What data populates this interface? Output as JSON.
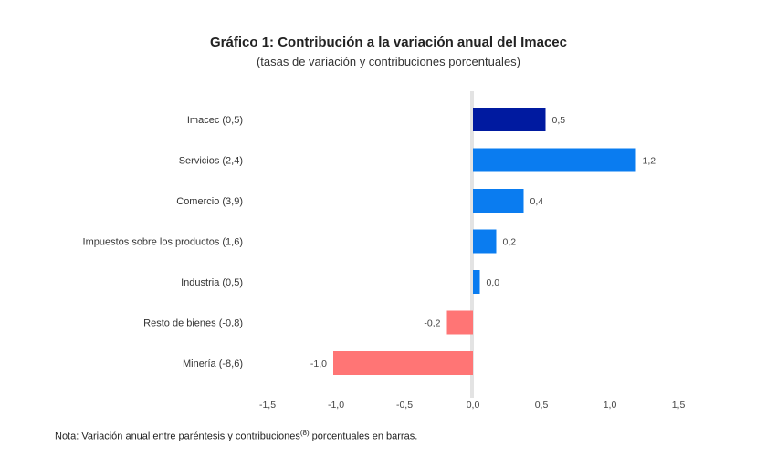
{
  "chart_data": {
    "type": "bar",
    "orientation": "horizontal",
    "title": "Gráfico 1: Contribución a la variación anual del Imacec",
    "subtitle": "(tasas de variación y contribuciones porcentuales)",
    "categories": [
      "Imacec (0,5)",
      "Servicios (2,4)",
      "Comercio (3,9)",
      "Impuestos sobre los productos (1,6)",
      "Industria (0,5)",
      "Resto de bienes (-0,8)",
      "Minería (-8,6)"
    ],
    "values": [
      0.5,
      1.2,
      0.4,
      0.2,
      0.0,
      -0.2,
      -1.0
    ],
    "bar_extent_estimates": [
      0.53,
      1.19,
      0.37,
      0.17,
      0.05,
      -0.19,
      -1.02
    ],
    "value_labels": [
      "0,5",
      "1,2",
      "0,4",
      "0,2",
      "0,0",
      "-0,2",
      "-1,0"
    ],
    "bar_colors": [
      "#001aa0",
      "#0a7cf0",
      "#0a7cf0",
      "#0a7cf0",
      "#0a7cf0",
      "#ff7575",
      "#ff7575"
    ],
    "xlim": [
      -1.5,
      1.5
    ],
    "xticks": [
      -1.5,
      -1.0,
      -0.5,
      0.0,
      0.5,
      1.0,
      1.5
    ],
    "xtick_labels": [
      "-1,5",
      "-1,0",
      "-0,5",
      "0,0",
      "0,5",
      "1,0",
      "1,5"
    ],
    "xlabel": "",
    "ylabel": "",
    "grid": false,
    "legend": "none",
    "note": {
      "prefix": "Nota: Variación anual entre paréntesis y contribuciones",
      "superscript": "(8)",
      "suffix": " porcentuales en barras."
    }
  }
}
